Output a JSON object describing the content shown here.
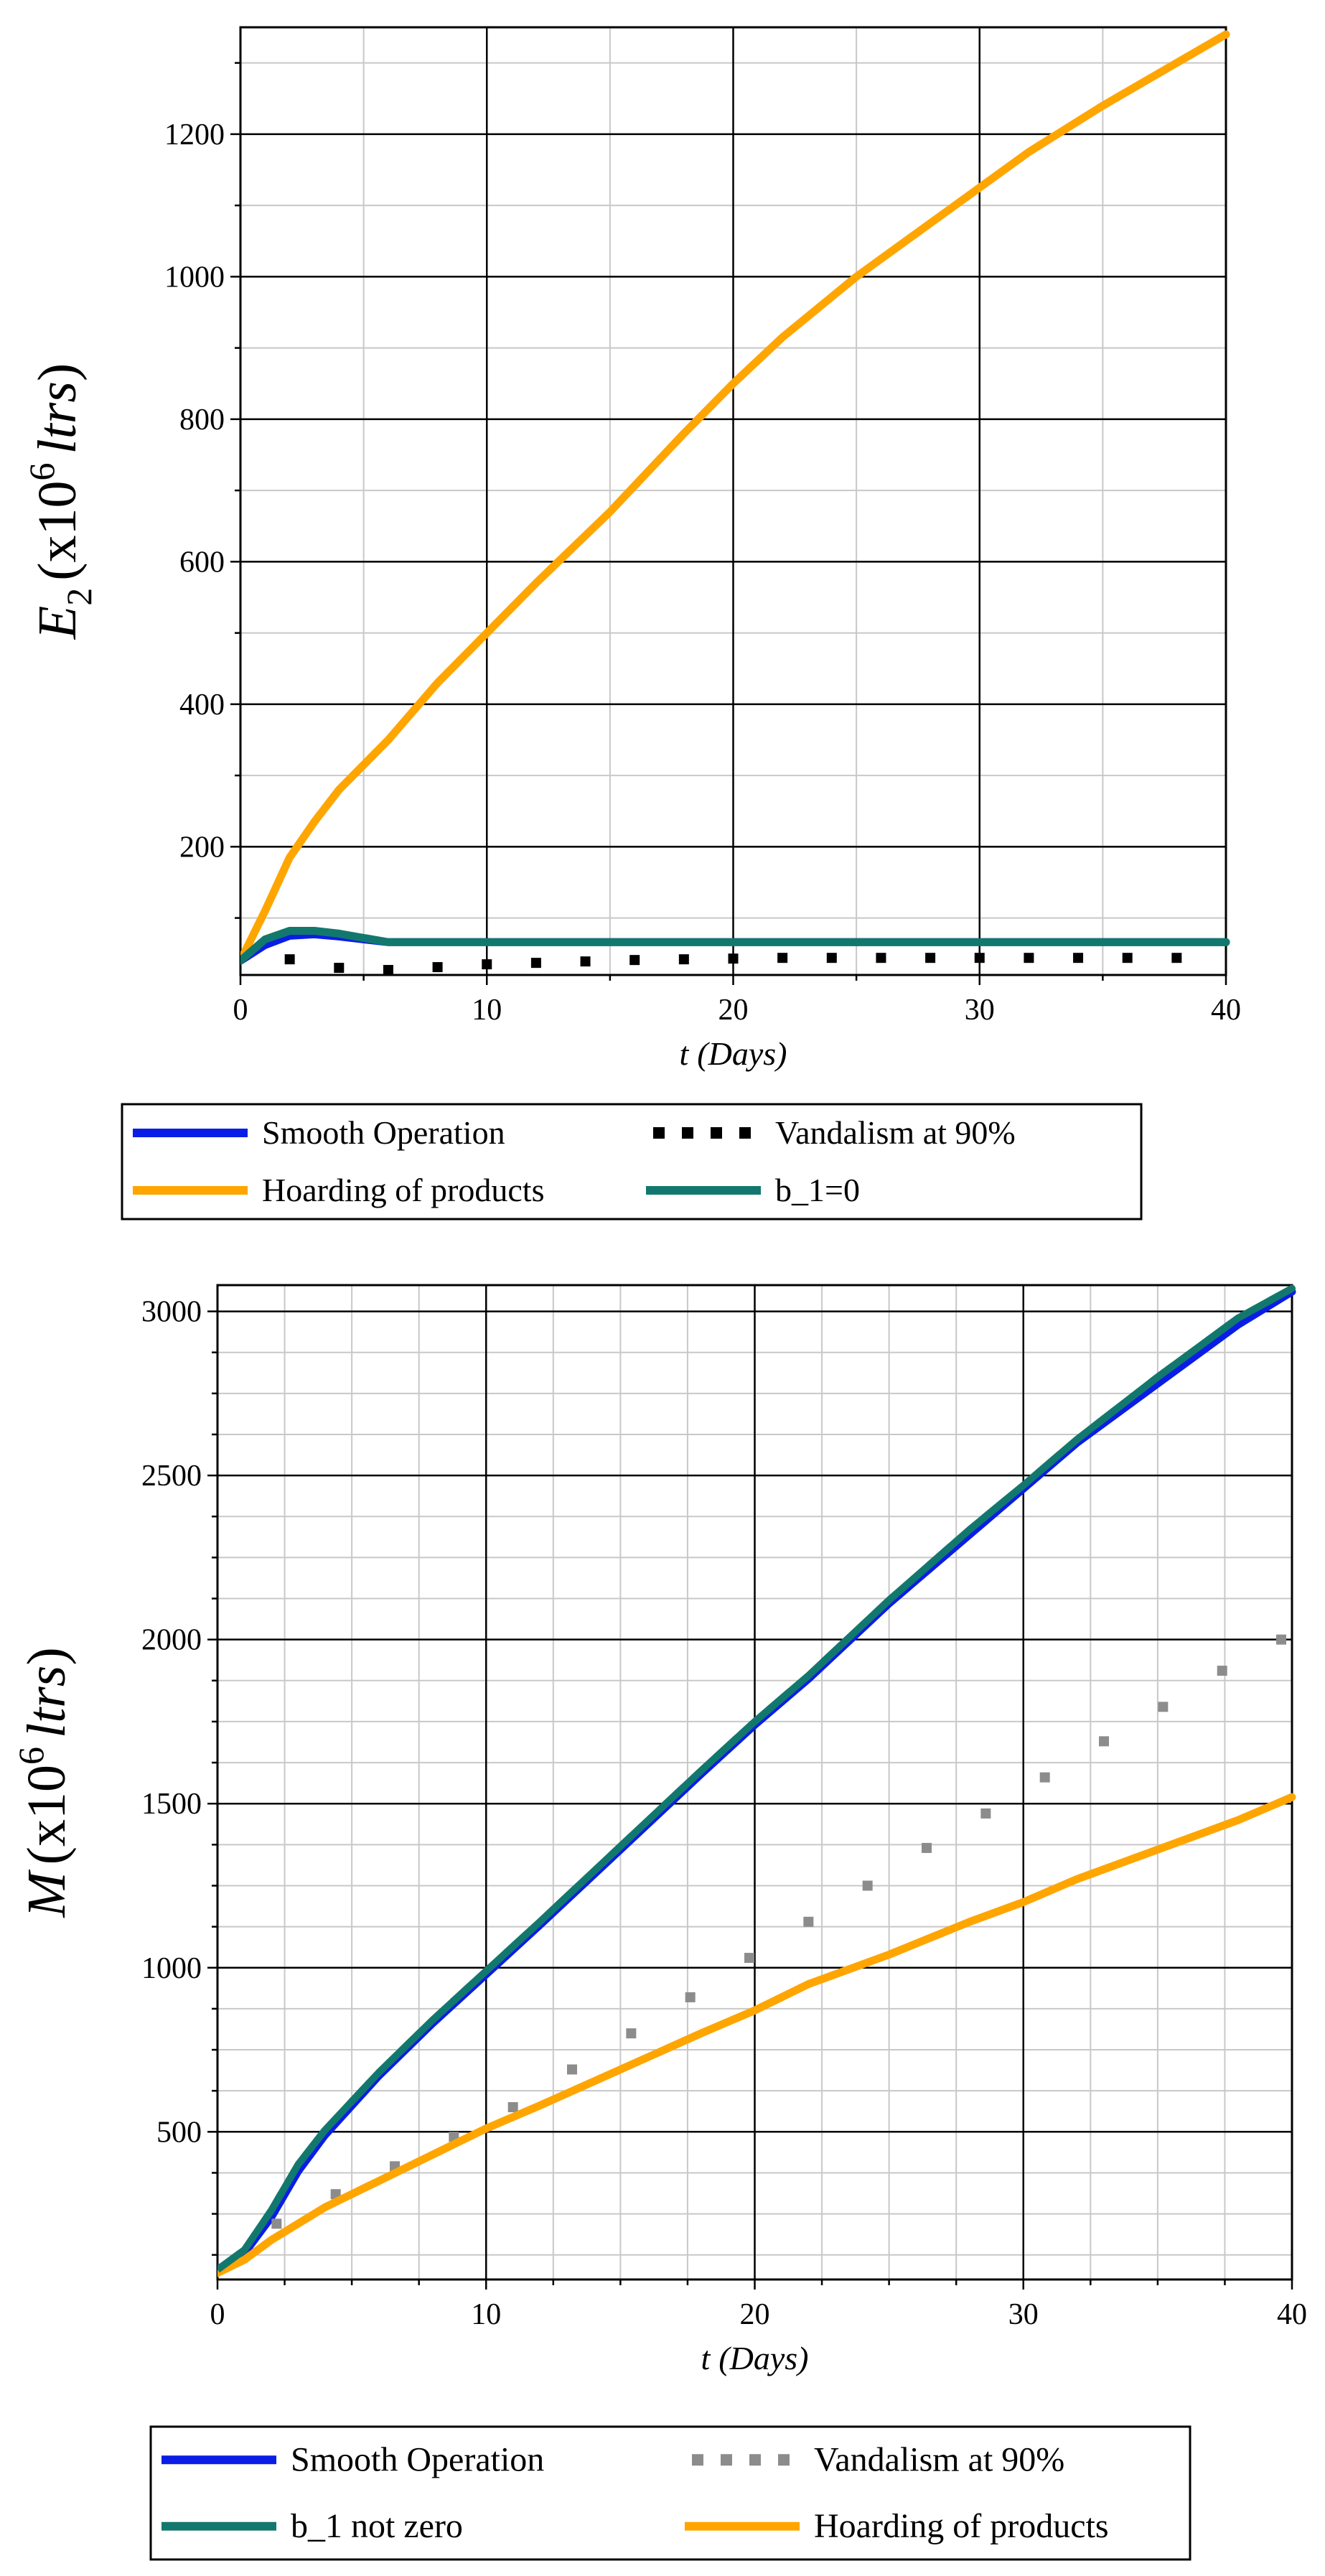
{
  "charts": [
    {
      "type": "line",
      "ylabel_main": "E",
      "ylabel_sub": "2",
      "ylabel_open": "(x10",
      "ylabel_exp": "6",
      "ylabel_unit": "ltrs",
      "ylabel_close": ")",
      "xlabel_var": "t",
      "xlabel_unit": "(Days)",
      "x_ticks": [
        "0",
        "10",
        "20",
        "30",
        "40"
      ],
      "y_ticks": [
        "200",
        "400",
        "600",
        "800",
        "1000",
        "1200"
      ],
      "xlim": [
        0,
        40
      ],
      "ylim": [
        20,
        1350
      ],
      "grid": true,
      "legend_position": "bottom",
      "series": [
        {
          "name": "Smooth Operation",
          "color": "#0a1de6",
          "style": "solid",
          "x": [
            0,
            1,
            2,
            3,
            4,
            5,
            6,
            8,
            10,
            15,
            20,
            25,
            30,
            35,
            40
          ],
          "y": [
            40,
            62,
            75,
            77,
            74,
            70,
            66,
            66,
            66,
            66,
            66,
            66,
            66,
            66,
            66
          ]
        },
        {
          "name": "Vandalism at 90%",
          "color": "#000000",
          "style": "dotted",
          "x": [
            2,
            4,
            6,
            8,
            10,
            12,
            14,
            16,
            18,
            20,
            22,
            24,
            26,
            28,
            30,
            32,
            34,
            36,
            38
          ],
          "y": [
            42,
            30,
            27,
            31,
            35,
            37,
            39,
            41,
            42,
            43,
            44,
            44,
            44,
            44,
            44,
            44,
            44,
            44,
            44
          ]
        },
        {
          "name": "Hoarding of products",
          "color": "#ffa500",
          "style": "solid",
          "x": [
            0,
            1,
            2,
            3,
            4,
            6,
            8,
            10,
            12,
            15,
            18,
            20,
            22,
            25,
            28,
            30,
            32,
            35,
            38,
            40
          ],
          "y": [
            40,
            110,
            185,
            235,
            280,
            350,
            430,
            500,
            570,
            670,
            780,
            850,
            915,
            1000,
            1075,
            1125,
            1175,
            1240,
            1300,
            1340
          ]
        },
        {
          "name": "b_1=0",
          "color": "#12786e",
          "style": "solid",
          "x": [
            0,
            1,
            2,
            3,
            4,
            5,
            6,
            8,
            10,
            15,
            20,
            25,
            30,
            35,
            40
          ],
          "y": [
            40,
            70,
            82,
            82,
            78,
            72,
            66,
            66,
            66,
            66,
            66,
            66,
            66,
            66,
            66
          ]
        }
      ],
      "legend_order": [
        0,
        1,
        2,
        3
      ]
    },
    {
      "type": "line",
      "ylabel_main": "M",
      "ylabel_open": "(x10",
      "ylabel_exp": "6",
      "ylabel_unit": "ltrs",
      "ylabel_close": ")",
      "xlabel_var": "t",
      "xlabel_unit": "(Days)",
      "x_ticks": [
        "0",
        "10",
        "20",
        "30",
        "40"
      ],
      "y_ticks": [
        "500",
        "1000",
        "1500",
        "2000",
        "2500",
        "3000"
      ],
      "xlim": [
        0,
        40
      ],
      "ylim": [
        50,
        3080
      ],
      "grid": true,
      "legend_position": "bottom",
      "series": [
        {
          "name": "Smooth Operation",
          "color": "#0a1de6",
          "style": "solid",
          "x": [
            0,
            1,
            2,
            3,
            4,
            6,
            8,
            10,
            12,
            15,
            18,
            20,
            22,
            25,
            28,
            30,
            32,
            35,
            38,
            40
          ],
          "y": [
            80,
            130,
            240,
            380,
            490,
            670,
            830,
            980,
            1130,
            1360,
            1590,
            1740,
            1880,
            2110,
            2320,
            2460,
            2600,
            2780,
            2960,
            3060
          ]
        },
        {
          "name": "Vandalism at 90%",
          "color": "#8c8c8c",
          "style": "dotted",
          "x": [
            0,
            2.2,
            4.4,
            6.6,
            8.8,
            11,
            13.2,
            15.4,
            17.6,
            19.8,
            22,
            24.2,
            26.4,
            28.6,
            30.8,
            33,
            35.2,
            37.4,
            39.6
          ],
          "y": [
            80,
            220,
            310,
            395,
            485,
            575,
            690,
            800,
            910,
            1030,
            1140,
            1250,
            1365,
            1470,
            1580,
            1690,
            1795,
            1905,
            2000
          ]
        },
        {
          "name": "b_1 not zero",
          "color": "#12786e",
          "style": "solid",
          "x": [
            0,
            1,
            2,
            3,
            4,
            6,
            8,
            10,
            12,
            15,
            18,
            20,
            22,
            25,
            28,
            30,
            32,
            35,
            38,
            40
          ],
          "y": [
            80,
            140,
            260,
            400,
            505,
            680,
            840,
            990,
            1140,
            1370,
            1600,
            1750,
            1890,
            2120,
            2335,
            2470,
            2610,
            2800,
            2980,
            3070
          ]
        },
        {
          "name": "Hoarding of products",
          "color": "#ffa500",
          "style": "solid",
          "x": [
            0,
            1,
            2,
            4,
            6,
            8,
            10,
            12,
            15,
            18,
            20,
            22,
            25,
            28,
            30,
            32,
            35,
            38,
            40
          ],
          "y": [
            70,
            110,
            170,
            270,
            350,
            430,
            510,
            580,
            690,
            800,
            870,
            950,
            1040,
            1140,
            1200,
            1270,
            1360,
            1450,
            1520
          ]
        }
      ],
      "legend_order": [
        0,
        1,
        2,
        3
      ]
    }
  ]
}
